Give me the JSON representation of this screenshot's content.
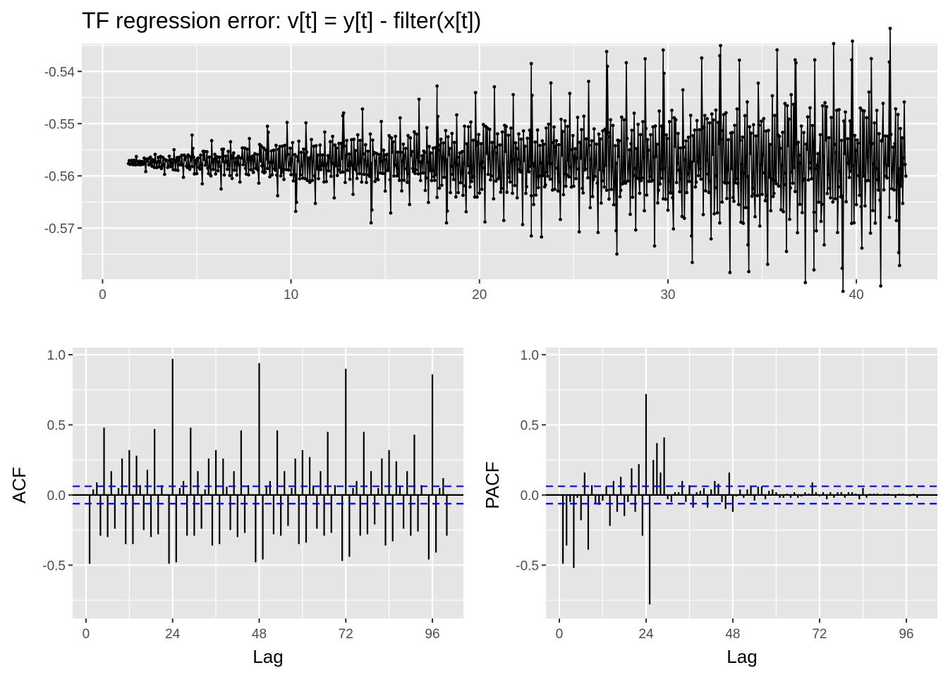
{
  "colors": {
    "panel": "#e5e5e5",
    "grid_major": "#ffffff",
    "series": "#000000",
    "ci": "#0000ff",
    "tick_text": "#4d4d4d"
  },
  "chart_data": [
    {
      "type": "line",
      "title": "TF regression error: v[t] = y[t] - filter(x[t])",
      "xlabel": "",
      "ylabel": "",
      "xlim": [
        -1.1,
        44.3
      ],
      "ylim": [
        -0.5798,
        -0.5347
      ],
      "x_ticks": [
        0,
        10,
        20,
        30,
        40
      ],
      "x_tick_labels": [
        "0",
        "10",
        "20",
        "30",
        "40"
      ],
      "y_ticks": [
        -0.54,
        -0.55,
        -0.56,
        -0.57
      ],
      "y_tick_labels": [
        "-0.54",
        "-0.55",
        "-0.56",
        "-0.57"
      ],
      "markers": true,
      "x_start": 1.375,
      "x_step": 0.041667,
      "n_points": 991,
      "center": -0.5575,
      "period": 24,
      "description_of_values": "hourly series, dense seasonal oscillation around -0.5575 whose amplitude grows from about 0.0005 at x=1.4 to about 0.02 at x=42.6; peaks near -0.536, troughs near -0.578",
      "peak_values": [
        {
          "x": 4.75,
          "y": -0.5522
        },
        {
          "x": 8.75,
          "y": -0.5505
        },
        {
          "x": 12.75,
          "y": -0.5485
        },
        {
          "x": 17.75,
          "y": -0.5428
        },
        {
          "x": 22.75,
          "y": -0.5385
        },
        {
          "x": 26.75,
          "y": -0.5362
        },
        {
          "x": 29.75,
          "y": -0.5359
        },
        {
          "x": 32.75,
          "y": -0.537
        },
        {
          "x": 36.75,
          "y": -0.5378
        },
        {
          "x": 39.75,
          "y": -0.5378
        },
        {
          "x": 41.75,
          "y": -0.5382
        }
      ],
      "trough_values": [
        {
          "x": 10.25,
          "y": -0.5668
        },
        {
          "x": 14.25,
          "y": -0.569
        },
        {
          "x": 18.25,
          "y": -0.569
        },
        {
          "x": 22.75,
          "y": -0.5715
        },
        {
          "x": 27.25,
          "y": -0.5705
        },
        {
          "x": 31.25,
          "y": -0.5715
        },
        {
          "x": 34.25,
          "y": -0.5732
        },
        {
          "x": 37.75,
          "y": -0.578
        },
        {
          "x": 39.25,
          "y": -0.5777
        },
        {
          "x": 42.25,
          "y": -0.5747
        }
      ]
    },
    {
      "type": "bar",
      "xlabel": "Lag",
      "ylabel": "ACF",
      "xlim": [
        -3.7,
        104.6
      ],
      "ylim": [
        -0.88,
        1.05
      ],
      "x_ticks": [
        0,
        24,
        48,
        72,
        96
      ],
      "x_tick_labels": [
        "0",
        "24",
        "48",
        "72",
        "96"
      ],
      "y_ticks": [
        1.0,
        0.5,
        0.0,
        -0.5
      ],
      "y_tick_labels": [
        "1.0",
        "0.5",
        "0.0",
        "-0.5"
      ],
      "ci": 0.062,
      "lags": [
        1,
        2,
        3,
        4,
        5,
        6,
        7,
        8,
        9,
        10,
        11,
        12,
        13,
        14,
        15,
        16,
        17,
        18,
        19,
        20,
        21,
        22,
        23,
        24,
        25,
        26,
        27,
        28,
        29,
        30,
        31,
        32,
        33,
        34,
        35,
        36,
        37,
        38,
        39,
        40,
        41,
        42,
        43,
        44,
        45,
        46,
        47,
        48,
        49,
        50,
        51,
        52,
        53,
        54,
        55,
        56,
        57,
        58,
        59,
        60,
        61,
        62,
        63,
        64,
        65,
        66,
        67,
        68,
        69,
        70,
        71,
        72,
        73,
        74,
        75,
        76,
        77,
        78,
        79,
        80,
        81,
        82,
        83,
        84,
        85,
        86,
        87,
        88,
        89,
        90,
        91,
        92,
        93,
        94,
        95,
        96,
        97,
        98,
        99,
        100
      ],
      "values": [
        -0.49,
        0.04,
        0.09,
        -0.29,
        0.48,
        -0.3,
        0.17,
        -0.24,
        0.05,
        0.26,
        -0.35,
        0.32,
        -0.35,
        0.28,
        0.07,
        -0.25,
        0.18,
        -0.3,
        0.47,
        -0.28,
        0.07,
        0.0,
        -0.49,
        0.97,
        -0.48,
        0.05,
        0.1,
        -0.29,
        0.48,
        -0.29,
        0.17,
        -0.24,
        0.04,
        0.26,
        -0.36,
        0.32,
        -0.35,
        0.26,
        0.06,
        -0.25,
        0.17,
        -0.3,
        0.46,
        -0.27,
        0.07,
        0.0,
        -0.48,
        0.94,
        -0.46,
        0.06,
        0.1,
        -0.28,
        0.46,
        -0.29,
        0.17,
        -0.22,
        0.05,
        0.26,
        -0.35,
        0.32,
        -0.34,
        0.27,
        0.06,
        -0.24,
        0.17,
        -0.29,
        0.45,
        -0.27,
        0.07,
        0.0,
        -0.47,
        0.9,
        -0.44,
        0.05,
        0.1,
        -0.29,
        0.45,
        -0.28,
        0.17,
        -0.21,
        0.05,
        0.26,
        -0.36,
        0.32,
        -0.33,
        0.24,
        0.06,
        -0.24,
        0.17,
        -0.29,
        0.43,
        -0.26,
        0.07,
        0.0,
        -0.46,
        0.86,
        -0.41,
        0.05,
        0.12,
        -0.29
      ]
    },
    {
      "type": "bar",
      "xlabel": "Lag",
      "ylabel": "PACF",
      "xlim": [
        -3.7,
        104.6
      ],
      "ylim": [
        -0.88,
        1.05
      ],
      "x_ticks": [
        0,
        24,
        48,
        72,
        96
      ],
      "x_tick_labels": [
        "0",
        "24",
        "48",
        "72",
        "96"
      ],
      "y_ticks": [
        1.0,
        0.5,
        0.0,
        -0.5
      ],
      "y_tick_labels": [
        "1.0",
        "0.5",
        "0.0",
        "-0.5"
      ],
      "ci": 0.062,
      "lags": [
        1,
        2,
        3,
        4,
        5,
        6,
        7,
        8,
        9,
        10,
        11,
        12,
        13,
        14,
        15,
        16,
        17,
        18,
        19,
        20,
        21,
        22,
        23,
        24,
        25,
        26,
        27,
        28,
        29,
        30,
        31,
        32,
        33,
        34,
        35,
        36,
        37,
        38,
        39,
        40,
        41,
        42,
        43,
        44,
        45,
        46,
        47,
        48,
        49,
        50,
        51,
        52,
        53,
        54,
        55,
        56,
        57,
        58,
        59,
        60,
        61,
        62,
        63,
        64,
        65,
        66,
        67,
        68,
        69,
        70,
        71,
        72,
        73,
        74,
        75,
        76,
        77,
        78,
        79,
        80,
        81,
        82,
        83,
        84,
        85,
        86,
        87,
        88,
        89,
        90,
        91,
        92,
        93,
        94,
        95,
        96,
        97,
        98,
        99,
        100
      ],
      "values": [
        -0.49,
        -0.36,
        -0.05,
        -0.52,
        -0.02,
        -0.18,
        0.16,
        -0.39,
        0.07,
        -0.06,
        -0.07,
        -0.04,
        0.06,
        -0.22,
        0.1,
        -0.12,
        0.13,
        -0.15,
        -0.05,
        0.19,
        -0.12,
        0.22,
        -0.29,
        0.72,
        -0.78,
        0.25,
        0.37,
        0.16,
        0.41,
        -0.03,
        -0.05,
        0.02,
        0.02,
        0.1,
        -0.05,
        0.07,
        -0.09,
        0.02,
        0.03,
        0.05,
        -0.09,
        0.04,
        0.1,
        0.08,
        -0.05,
        -0.1,
        0.16,
        -0.12,
        -0.01,
        0.04,
        -0.02,
        0.04,
        0.06,
        -0.04,
        0.06,
        0.06,
        -0.03,
        0.03,
        0.04,
        0.02,
        -0.02,
        -0.02,
        0.01,
        -0.02,
        0.02,
        -0.02,
        -0.01,
        0.02,
        0.01,
        0.09,
        0.02,
        -0.01,
        0.02,
        -0.03,
        0.02,
        -0.02,
        0.02,
        0.02,
        -0.02,
        0.02,
        0.02,
        0.01,
        -0.03,
        0.05,
        -0.02,
        0.01,
        0.01,
        0.01,
        0.0,
        0.01,
        0.01,
        0.0,
        -0.02,
        0.01,
        0.01,
        0.0,
        -0.01,
        0.01,
        -0.02,
        0.0
      ]
    }
  ]
}
